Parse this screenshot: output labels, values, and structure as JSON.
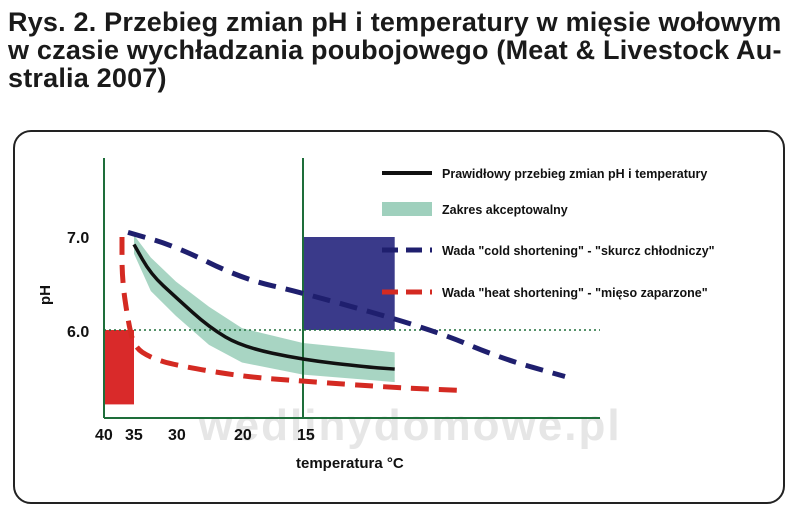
{
  "title": {
    "line1": "Rys. 2. Przebieg zmian pH i temperatury w mięsie wołowym",
    "line2": "w czasie wychładzania poubojowego (Meat & Livestock Au-",
    "line3": "stralia 2007)"
  },
  "watermark": "wedlinydomowe.pl",
  "colors": {
    "normal": "#111111",
    "acceptable": "#9fd0bd",
    "cold": "#1f1f6e",
    "heat": "#d42a22",
    "cold_zone": "#3a3a8a",
    "heat_zone": "#d92a2a",
    "axis": "#1e6e3a"
  },
  "chart_data": {
    "type": "line",
    "xlabel": "temperatura °C",
    "ylabel": "pH",
    "x_ticks": [
      "40",
      "35",
      "30",
      "20",
      "15"
    ],
    "y_ticks": [
      "7.0",
      "6.0"
    ],
    "legend_position": "top-right",
    "series": [
      {
        "name": "Prawidłowy przebieg zmian pH i temperatury",
        "style": "solid",
        "color": "#111111",
        "points": [
          [
            35,
            6.92
          ],
          [
            33,
            6.6
          ],
          [
            30,
            6.35
          ],
          [
            25,
            6.03
          ],
          [
            20,
            5.82
          ],
          [
            15,
            5.68
          ],
          [
            10,
            5.6
          ],
          [
            8,
            5.58
          ]
        ]
      },
      {
        "name": "Zakres akceptowalny",
        "style": "band",
        "color": "#9fd0bd",
        "upper": [
          [
            35,
            7.02
          ],
          [
            33,
            6.78
          ],
          [
            30,
            6.52
          ],
          [
            25,
            6.25
          ],
          [
            20,
            6.02
          ],
          [
            15,
            5.86
          ],
          [
            8,
            5.76
          ]
        ],
        "lower": [
          [
            35,
            6.82
          ],
          [
            33,
            6.42
          ],
          [
            30,
            6.15
          ],
          [
            25,
            5.84
          ],
          [
            20,
            5.65
          ],
          [
            15,
            5.52
          ],
          [
            8,
            5.44
          ]
        ]
      },
      {
        "name": "Wada \"cold shortening\" - \"skurcz chłodniczy\"",
        "style": "dashed",
        "color": "#1f1f6e",
        "points": [
          [
            36,
            7.05
          ],
          [
            30,
            6.9
          ],
          [
            20,
            6.55
          ],
          [
            15,
            6.4
          ],
          [
            5,
            6.0
          ],
          [
            0,
            5.7
          ],
          [
            -5,
            5.5
          ]
        ]
      },
      {
        "name": "Wada \"heat shortening\" - \"mięso zaparzone\"",
        "style": "dashed",
        "color": "#d42a22",
        "points": [
          [
            37,
            7.0
          ],
          [
            37,
            6.55
          ],
          [
            36,
            6.1
          ],
          [
            35,
            5.82
          ],
          [
            33,
            5.7
          ],
          [
            30,
            5.62
          ],
          [
            20,
            5.5
          ],
          [
            15,
            5.45
          ],
          [
            8,
            5.38
          ],
          [
            3,
            5.35
          ]
        ]
      }
    ],
    "zones": [
      {
        "kind": "cold",
        "x_from": 15,
        "x_to": 8,
        "y_from": 6.0,
        "y_to": 7.0
      },
      {
        "kind": "heat",
        "x_from": 40,
        "x_to": 35,
        "y_from": 5.2,
        "y_to": 6.0
      }
    ]
  }
}
